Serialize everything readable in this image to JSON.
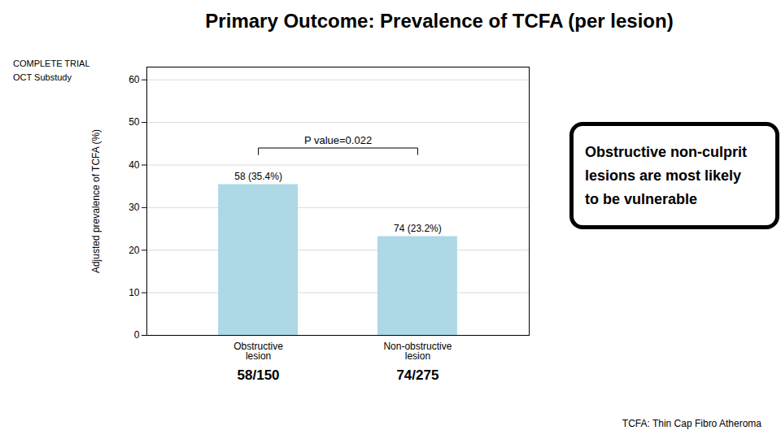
{
  "chart_data": {
    "type": "bar",
    "title": "Primary Outcome: Prevalence of TCFA (per lesion)",
    "subtitle": [
      "COMPLETE TRIAL",
      "OCT Substudy"
    ],
    "categories": [
      "Obstructive\nlesion",
      "Non-obstructive\nlesion"
    ],
    "values": [
      35.4,
      23.2
    ],
    "value_labels": [
      "58 (35.4%)",
      "74 (23.2%)"
    ],
    "data_labels": true,
    "color": "#add8e6",
    "ylabel": "Adjusted prevalence of TCFA (%)",
    "ylim": [
      0,
      63
    ],
    "yticks": [
      0,
      10,
      20,
      30,
      40,
      50,
      60
    ],
    "grid": true,
    "bracket": {
      "y": 44,
      "label": "P value=0.022"
    },
    "category_notes": [
      "58/150",
      "74/275"
    ],
    "callout": [
      "Obstructive non-culprit",
      "lesions are most likely",
      "to be vulnerable"
    ],
    "note": "TCFA: Thin Cap Fibro Atheroma"
  }
}
